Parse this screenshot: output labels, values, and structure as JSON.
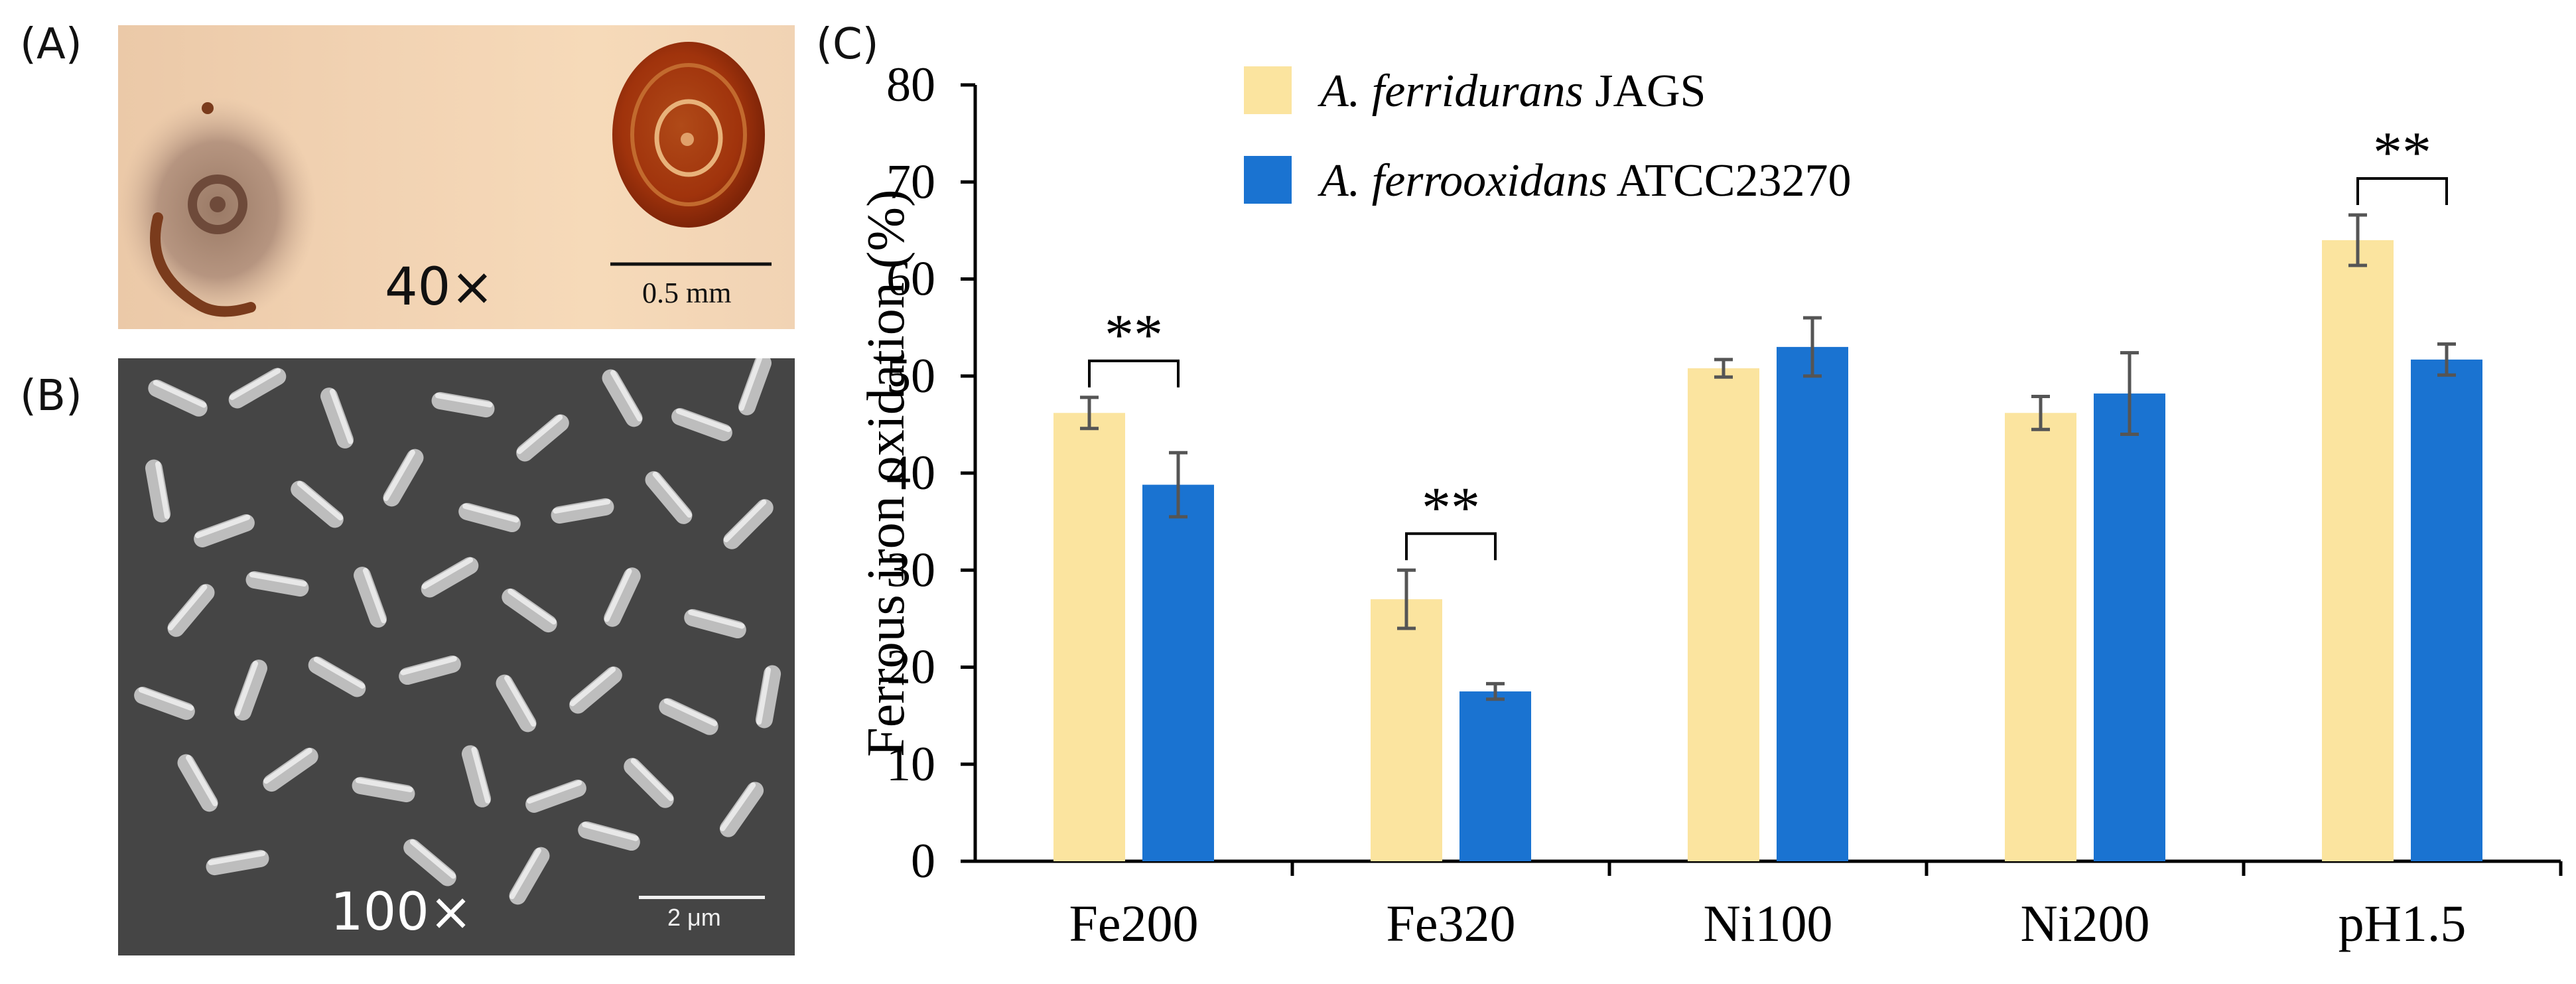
{
  "panels": {
    "a": {
      "label": "(A)",
      "magnification": "40×",
      "scale_bar": "0.5 mm"
    },
    "b": {
      "label": "(B)",
      "magnification": "100×",
      "scale_bar": "2 μm"
    },
    "c": {
      "label": "(C)"
    }
  },
  "chart_data": {
    "type": "bar",
    "ylabel": "Ferrous iron oxidation (%)",
    "xlabel": "",
    "ylim": [
      0,
      80
    ],
    "yticks": [
      0,
      10,
      20,
      30,
      40,
      50,
      60,
      70,
      80
    ],
    "categories": [
      "Fe200",
      "Fe320",
      "Ni100",
      "Ni200",
      "pH1.5"
    ],
    "series": [
      {
        "name_italic": "A. ferridurans",
        "name_rest": " JAGS",
        "color": "#fbe49f",
        "values": [
          46.2,
          27.0,
          50.8,
          46.2,
          64.0
        ],
        "errors": [
          1.6,
          3.0,
          0.9,
          1.7,
          2.6
        ]
      },
      {
        "name_italic": "A. ferrooxidans",
        "name_rest": " ATCC23270",
        "color": "#1a73d1",
        "values": [
          38.8,
          17.5,
          53.0,
          48.2,
          51.7
        ],
        "errors": [
          3.3,
          0.8,
          3.0,
          4.2,
          1.6
        ]
      }
    ],
    "significance": [
      {
        "category": "Fe200",
        "label": "**"
      },
      {
        "category": "Fe320",
        "label": "**"
      },
      {
        "category": "pH1.5",
        "label": "**"
      }
    ],
    "legend_position": "top-left",
    "grid": false
  }
}
